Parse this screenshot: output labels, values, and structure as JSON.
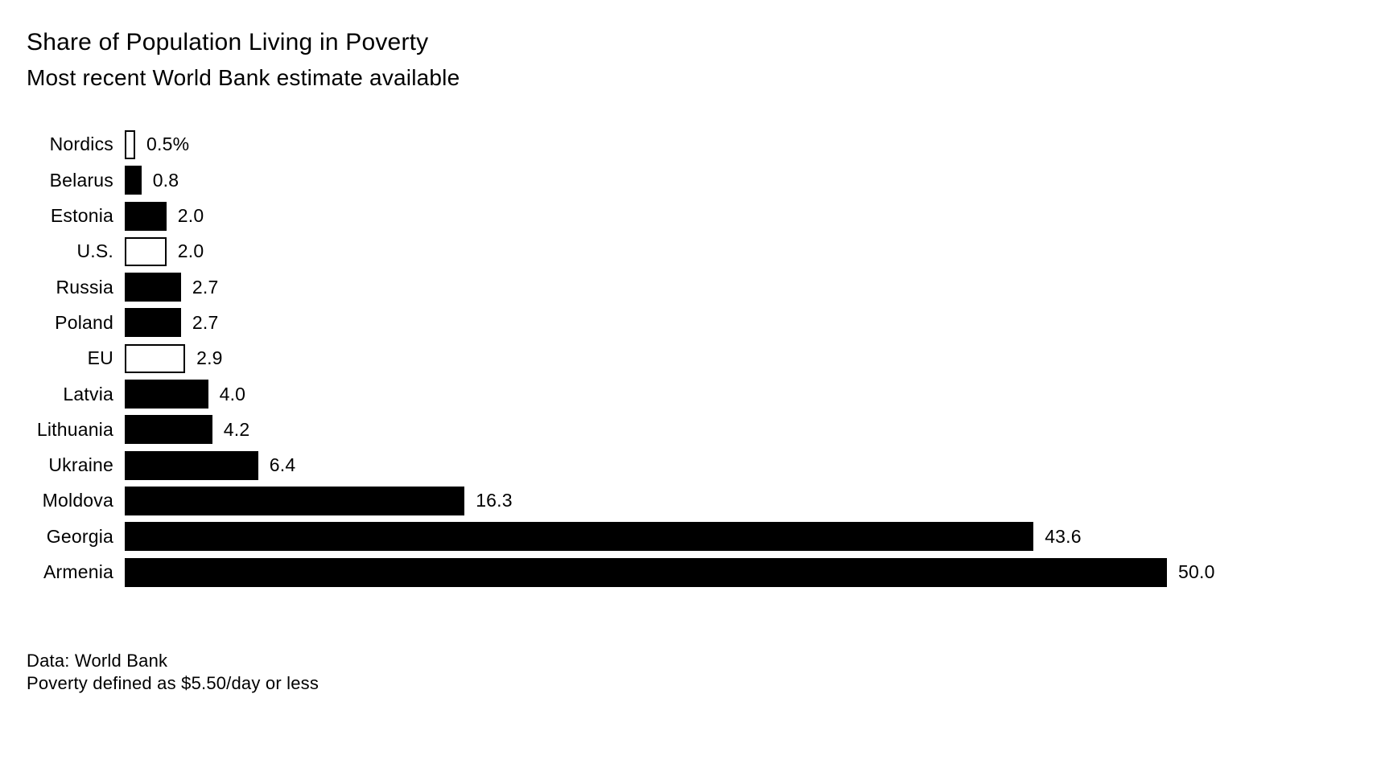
{
  "header": {
    "title": "Share of Population Living in Poverty",
    "subtitle": "Most recent World Bank estimate available"
  },
  "footer": {
    "source": "Data: World Bank",
    "note": "Poverty defined as $5.50/day or less"
  },
  "chart_data": {
    "type": "bar",
    "orientation": "horizontal",
    "title": "Share of Population Living in Poverty",
    "subtitle": "Most recent World Bank estimate available",
    "xlabel": "",
    "ylabel": "",
    "xlim": [
      0,
      50
    ],
    "grid": false,
    "legend": false,
    "categories": [
      "Nordics",
      "Belarus",
      "Estonia",
      "U.S.",
      "Russia",
      "Poland",
      "EU",
      "Latvia",
      "Lithuania",
      "Ukraine",
      "Moldova",
      "Georgia",
      "Armenia"
    ],
    "values": [
      0.5,
      0.8,
      2.0,
      2.0,
      2.7,
      2.7,
      2.9,
      4.0,
      4.2,
      6.4,
      16.3,
      43.6,
      50.0
    ],
    "value_labels": [
      "0.5%",
      "0.8",
      "2.0",
      "2.0",
      "2.7",
      "2.7",
      "2.9",
      "4.0",
      "4.2",
      "6.4",
      "16.3",
      "43.6",
      "50.0"
    ],
    "bar_styles": [
      "outline",
      "filled",
      "filled",
      "outline",
      "filled",
      "filled",
      "outline",
      "filled",
      "filled",
      "filled",
      "filled",
      "filled",
      "filled"
    ],
    "colors": {
      "filled_bar": "#000000",
      "outline_bar_fill": "#ffffff",
      "outline_bar_stroke": "#000000",
      "background": "#ffffff",
      "text": "#000000"
    }
  }
}
